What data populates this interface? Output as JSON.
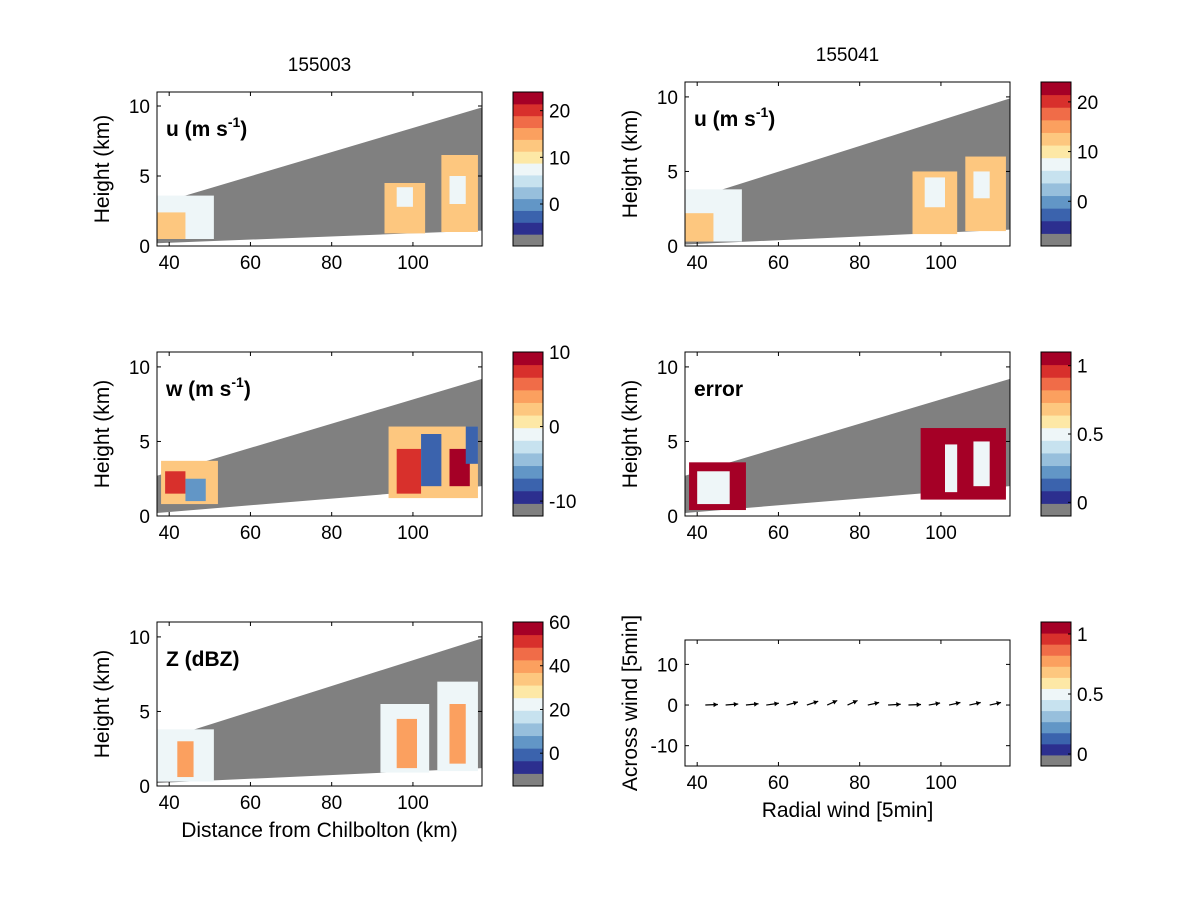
{
  "chart_data": [
    {
      "type": "heatmap",
      "panel": "u-155003",
      "title": "155003",
      "label": "u (m s",
      "label_sup": "-1",
      "label_close": ")",
      "ylabel": "Height (km)",
      "xlabel": "",
      "xlim": [
        37,
        117
      ],
      "ylim": [
        0,
        11
      ],
      "xticks": [
        40,
        60,
        80,
        100
      ],
      "yticks": [
        0,
        5,
        10
      ],
      "colorbar": {
        "min": -9,
        "max": 24,
        "ticks": [
          0,
          10,
          20
        ]
      },
      "coverage": {
        "x": [
          37,
          117
        ],
        "bottom": [
          0.2,
          1.1
        ],
        "top": [
          3.0,
          9.9
        ]
      },
      "cells": [
        {
          "x0": 37,
          "x1": 51,
          "y0": 0.5,
          "y1": 3.6,
          "v": 6
        },
        {
          "x0": 37,
          "x1": 44,
          "y0": 0.5,
          "y1": 2.4,
          "v": 11
        },
        {
          "x0": 93,
          "x1": 103,
          "y0": 0.9,
          "y1": 4.5,
          "v": 11
        },
        {
          "x0": 96,
          "x1": 100,
          "y0": 2.8,
          "y1": 4.2,
          "v": 6
        },
        {
          "x0": 107,
          "x1": 116,
          "y0": 1.0,
          "y1": 6.5,
          "v": 11
        },
        {
          "x0": 109,
          "x1": 113,
          "y0": 3.0,
          "y1": 5.0,
          "v": 5
        }
      ]
    },
    {
      "type": "heatmap",
      "panel": "u-155041",
      "title": "155041",
      "label": "u (m s",
      "label_sup": "-1",
      "label_close": ")",
      "ylabel": "Height (km)",
      "xlabel": "",
      "xlim": [
        37,
        117
      ],
      "ylim": [
        0,
        11
      ],
      "xticks": [
        40,
        60,
        80,
        100
      ],
      "yticks": [
        0,
        5,
        10
      ],
      "colorbar": {
        "min": -9,
        "max": 24,
        "ticks": [
          0,
          10,
          20
        ]
      },
      "coverage": {
        "x": [
          37,
          117
        ],
        "bottom": [
          0.1,
          1.1
        ],
        "top": [
          3.0,
          9.9
        ]
      },
      "cells": [
        {
          "x0": 37,
          "x1": 51,
          "y0": 0.3,
          "y1": 3.8,
          "v": 6
        },
        {
          "x0": 37,
          "x1": 44,
          "y0": 0.3,
          "y1": 2.2,
          "v": 11
        },
        {
          "x0": 93,
          "x1": 104,
          "y0": 0.8,
          "y1": 5.0,
          "v": 11
        },
        {
          "x0": 96,
          "x1": 101,
          "y0": 2.6,
          "y1": 4.6,
          "v": 6
        },
        {
          "x0": 106,
          "x1": 116,
          "y0": 1.0,
          "y1": 6.0,
          "v": 11
        },
        {
          "x0": 108,
          "x1": 112,
          "y0": 3.2,
          "y1": 5.0,
          "v": 6
        }
      ]
    },
    {
      "type": "heatmap",
      "panel": "w-155003",
      "title": "",
      "label": "w (m s",
      "label_sup": "-1",
      "label_close": ")",
      "ylabel": "Height (km)",
      "xlabel": "",
      "xlim": [
        37,
        117
      ],
      "ylim": [
        0,
        11
      ],
      "xticks": [
        40,
        60,
        80,
        100
      ],
      "yticks": [
        0,
        5,
        10
      ],
      "colorbar": {
        "min": -12,
        "max": 10,
        "ticks": [
          -10,
          0,
          10
        ]
      },
      "coverage": {
        "x": [
          37,
          117
        ],
        "bottom": [
          0.2,
          2.0
        ],
        "top": [
          2.7,
          9.2
        ]
      },
      "cells": [
        {
          "x0": 38,
          "x1": 52,
          "y0": 0.8,
          "y1": 3.7,
          "v": 1
        },
        {
          "x0": 39,
          "x1": 44,
          "y0": 1.5,
          "y1": 3.0,
          "v": 8
        },
        {
          "x0": 44,
          "x1": 49,
          "y0": 1.0,
          "y1": 2.5,
          "v": -8
        },
        {
          "x0": 94,
          "x1": 116,
          "y0": 1.2,
          "y1": 6.0,
          "v": 1
        },
        {
          "x0": 96,
          "x1": 102,
          "y0": 1.5,
          "y1": 4.5,
          "v": 7
        },
        {
          "x0": 102,
          "x1": 107,
          "y0": 2.0,
          "y1": 5.5,
          "v": -9
        },
        {
          "x0": 109,
          "x1": 114,
          "y0": 2.0,
          "y1": 4.5,
          "v": 9
        },
        {
          "x0": 113,
          "x1": 116,
          "y0": 3.5,
          "y1": 6.0,
          "v": -10
        }
      ]
    },
    {
      "type": "heatmap",
      "panel": "error-155041",
      "title": "",
      "label": "error",
      "label_sup": "",
      "label_close": "",
      "ylabel": "Height (km)",
      "xlabel": "",
      "xlim": [
        37,
        117
      ],
      "ylim": [
        0,
        11
      ],
      "xticks": [
        40,
        60,
        80,
        100
      ],
      "yticks": [
        0,
        5,
        10
      ],
      "colorbar": {
        "min": -0.1,
        "max": 1.1,
        "ticks": [
          0,
          0.5,
          1
        ]
      },
      "coverage": {
        "x": [
          37,
          117
        ],
        "bottom": [
          0.2,
          2.0
        ],
        "top": [
          2.7,
          9.2
        ]
      },
      "cells": [
        {
          "x0": 38,
          "x1": 52,
          "y0": 0.4,
          "y1": 3.6,
          "v": 1.05
        },
        {
          "x0": 40,
          "x1": 48,
          "y0": 0.8,
          "y1": 3.0,
          "v": 0.5
        },
        {
          "x0": 95,
          "x1": 116,
          "y0": 1.1,
          "y1": 5.9,
          "v": 1.05
        },
        {
          "x0": 101,
          "x1": 104,
          "y0": 1.6,
          "y1": 4.8,
          "v": 0.45
        },
        {
          "x0": 108,
          "x1": 112,
          "y0": 2.0,
          "y1": 5.0,
          "v": 0.5
        }
      ]
    },
    {
      "type": "heatmap",
      "panel": "Z-155003",
      "title": "",
      "label": "Z (dBZ)",
      "label_sup": "",
      "label_close": "",
      "ylabel": "Height (km)",
      "xlabel": "Distance from Chilbolton (km)",
      "xlim": [
        37,
        117
      ],
      "ylim": [
        0,
        11
      ],
      "xticks": [
        40,
        60,
        80,
        100
      ],
      "yticks": [
        0,
        5,
        10
      ],
      "colorbar": {
        "min": -15,
        "max": 60,
        "ticks": [
          0,
          20,
          40,
          60
        ]
      },
      "coverage": {
        "x": [
          37,
          117
        ],
        "bottom": [
          0.2,
          1.2
        ],
        "top": [
          3.0,
          9.9
        ]
      },
      "cells": [
        {
          "x0": 37,
          "x1": 51,
          "y0": 0.3,
          "y1": 3.8,
          "v": 22
        },
        {
          "x0": 42,
          "x1": 46,
          "y0": 0.6,
          "y1": 3.0,
          "v": 38
        },
        {
          "x0": 92,
          "x1": 104,
          "y0": 0.9,
          "y1": 5.5,
          "v": 18
        },
        {
          "x0": 96,
          "x1": 101,
          "y0": 1.2,
          "y1": 4.5,
          "v": 36
        },
        {
          "x0": 106,
          "x1": 116,
          "y0": 1.0,
          "y1": 7.0,
          "v": 18
        },
        {
          "x0": 109,
          "x1": 113,
          "y0": 1.5,
          "y1": 5.5,
          "v": 40
        }
      ]
    },
    {
      "type": "quiver",
      "panel": "wind-155041",
      "title": "",
      "label": "",
      "ylabel": "Across wind [5min]",
      "xlabel": "Radial wind [5min]",
      "xlim": [
        37,
        117
      ],
      "ylim": [
        -15,
        16
      ],
      "xticks": [
        40,
        60,
        80,
        100
      ],
      "yticks": [
        -10,
        0,
        10
      ],
      "colorbar": {
        "min": -0.1,
        "max": 1.1,
        "ticks": [
          0,
          0.5,
          1
        ]
      },
      "arrows": [
        {
          "x": 42,
          "y": 0,
          "u": 5,
          "v": 0.2
        },
        {
          "x": 47,
          "y": 0,
          "u": 5,
          "v": 0.4
        },
        {
          "x": 52,
          "y": 0,
          "u": 5,
          "v": 0.5
        },
        {
          "x": 57,
          "y": 0,
          "u": 5,
          "v": 0.7
        },
        {
          "x": 62,
          "y": 0,
          "u": 4.5,
          "v": 1.2
        },
        {
          "x": 67,
          "y": 0,
          "u": 4.5,
          "v": 1.5
        },
        {
          "x": 72,
          "y": 0,
          "u": 4,
          "v": 1.8
        },
        {
          "x": 77,
          "y": 0,
          "u": 4,
          "v": 1.8
        },
        {
          "x": 82,
          "y": 0,
          "u": 4.5,
          "v": 1.0
        },
        {
          "x": 87,
          "y": 0,
          "u": 5,
          "v": 0.3
        },
        {
          "x": 92,
          "y": 0,
          "u": 5,
          "v": 0.2
        },
        {
          "x": 97,
          "y": 0,
          "u": 4.5,
          "v": 0.8
        },
        {
          "x": 102,
          "y": 0,
          "u": 4.5,
          "v": 1.0
        },
        {
          "x": 107,
          "y": 0,
          "u": 4.5,
          "v": 1.0
        },
        {
          "x": 112,
          "y": 0,
          "u": 4.5,
          "v": 1.0
        }
      ]
    }
  ],
  "colors": {
    "colormap": [
      "#2c2f8f",
      "#3b63ad",
      "#6296c6",
      "#97bfdc",
      "#c7e2ef",
      "#eef6f8",
      "#fde8a6",
      "#fdc77f",
      "#fba05f",
      "#f06c48",
      "#d8302c",
      "#a50026"
    ],
    "missing": "#808080",
    "arrow": "#000000"
  }
}
